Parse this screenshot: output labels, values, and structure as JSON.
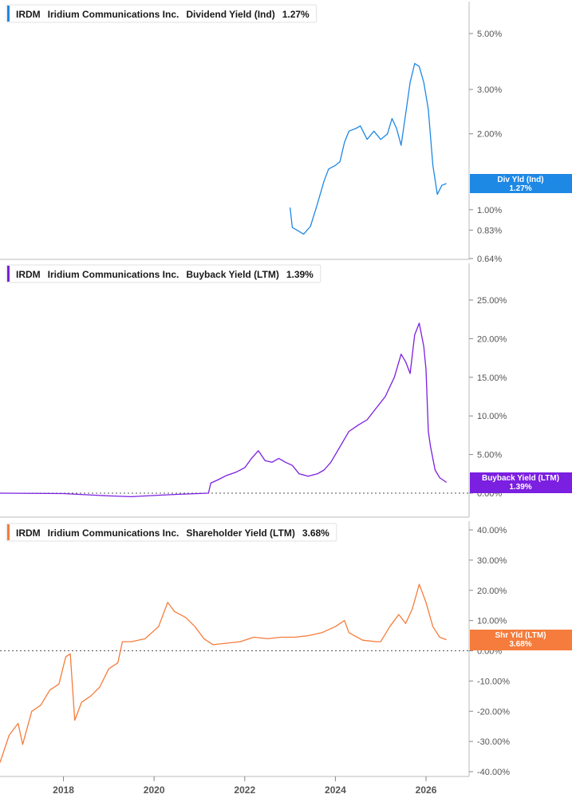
{
  "colors": {
    "dividend": "#1e88e5",
    "buyback": "#7b1fe0",
    "shareholder": "#f57c3c",
    "axis": "#bbbbbb",
    "text": "#1a1a1a",
    "muted": "#555555"
  },
  "x_axis": {
    "ticks": [
      "2018",
      "2020",
      "2022",
      "2024",
      "2026"
    ]
  },
  "chart_data": [
    {
      "type": "line",
      "ticker": "IRDM",
      "company": "Iridium Communications Inc.",
      "metric": "Dividend Yield (Ind)",
      "last_value": "1.27%",
      "tag": {
        "line1": "Div Yld (Ind)",
        "line2": "1.27%"
      },
      "y_scale": "log",
      "ylim": [
        0.64,
        6.5
      ],
      "y_ticks": [
        "5.00%",
        "3.00%",
        "2.00%",
        "1.00%",
        "0.83%",
        "0.64%"
      ],
      "y_tick_values": [
        5.0,
        3.0,
        2.0,
        1.0,
        0.83,
        0.64
      ],
      "series": [
        {
          "values": [
            [
              2023.0,
              1.02
            ],
            [
              2023.05,
              0.85
            ],
            [
              2023.15,
              0.83
            ],
            [
              2023.3,
              0.8
            ],
            [
              2023.45,
              0.86
            ],
            [
              2023.6,
              1.05
            ],
            [
              2023.75,
              1.3
            ],
            [
              2023.85,
              1.45
            ],
            [
              2024.0,
              1.5
            ],
            [
              2024.1,
              1.55
            ],
            [
              2024.2,
              1.85
            ],
            [
              2024.3,
              2.05
            ],
            [
              2024.45,
              2.1
            ],
            [
              2024.55,
              2.15
            ],
            [
              2024.7,
              1.9
            ],
            [
              2024.85,
              2.05
            ],
            [
              2025.0,
              1.9
            ],
            [
              2025.15,
              2.0
            ],
            [
              2025.25,
              2.3
            ],
            [
              2025.35,
              2.1
            ],
            [
              2025.45,
              1.8
            ],
            [
              2025.55,
              2.4
            ],
            [
              2025.65,
              3.2
            ],
            [
              2025.75,
              3.8
            ],
            [
              2025.85,
              3.7
            ],
            [
              2025.95,
              3.2
            ],
            [
              2026.05,
              2.5
            ],
            [
              2026.15,
              1.5
            ],
            [
              2026.25,
              1.15
            ],
            [
              2026.35,
              1.25
            ],
            [
              2026.45,
              1.27
            ]
          ]
        }
      ]
    },
    {
      "type": "line",
      "ticker": "IRDM",
      "company": "Iridium Communications Inc.",
      "metric": "Buyback Yield (LTM)",
      "last_value": "1.39%",
      "tag": {
        "line1": "Buyback Yield (LTM)",
        "line2": "1.39%"
      },
      "y_scale": "linear",
      "ylim": [
        -1,
        26
      ],
      "y_ticks": [
        "25.00%",
        "20.00%",
        "15.00%",
        "10.00%",
        "5.00%",
        "0.00%"
      ],
      "y_tick_values": [
        25,
        20,
        15,
        10,
        5,
        0
      ],
      "baseline": 0,
      "series": [
        {
          "values": [
            [
              2016.6,
              0.0
            ],
            [
              2018.0,
              -0.05
            ],
            [
              2019.0,
              -0.35
            ],
            [
              2019.5,
              -0.45
            ],
            [
              2020.0,
              -0.3
            ],
            [
              2020.5,
              -0.15
            ],
            [
              2021.2,
              0.0
            ],
            [
              2021.25,
              1.3
            ],
            [
              2021.4,
              1.7
            ],
            [
              2021.6,
              2.3
            ],
            [
              2021.8,
              2.7
            ],
            [
              2022.0,
              3.3
            ],
            [
              2022.15,
              4.5
            ],
            [
              2022.3,
              5.5
            ],
            [
              2022.45,
              4.2
            ],
            [
              2022.6,
              4.0
            ],
            [
              2022.75,
              4.5
            ],
            [
              2022.9,
              4.0
            ],
            [
              2023.05,
              3.6
            ],
            [
              2023.2,
              2.5
            ],
            [
              2023.4,
              2.2
            ],
            [
              2023.6,
              2.5
            ],
            [
              2023.75,
              3.0
            ],
            [
              2023.9,
              4.0
            ],
            [
              2024.1,
              6.0
            ],
            [
              2024.3,
              8.0
            ],
            [
              2024.5,
              8.8
            ],
            [
              2024.7,
              9.5
            ],
            [
              2024.9,
              11.0
            ],
            [
              2025.1,
              12.5
            ],
            [
              2025.3,
              15.0
            ],
            [
              2025.45,
              18.0
            ],
            [
              2025.55,
              17.0
            ],
            [
              2025.65,
              15.5
            ],
            [
              2025.75,
              20.5
            ],
            [
              2025.85,
              22.0
            ],
            [
              2025.95,
              19.0
            ],
            [
              2026.0,
              16.0
            ],
            [
              2026.05,
              8.0
            ],
            [
              2026.1,
              6.0
            ],
            [
              2026.2,
              3.0
            ],
            [
              2026.3,
              2.0
            ],
            [
              2026.4,
              1.6
            ],
            [
              2026.45,
              1.39
            ]
          ]
        }
      ]
    },
    {
      "type": "line",
      "ticker": "IRDM",
      "company": "Iridium Communications Inc.",
      "metric": "Shareholder Yield (LTM)",
      "last_value": "3.68%",
      "tag": {
        "line1": "Shr Yld (LTM)",
        "line2": "3.68%"
      },
      "y_scale": "linear",
      "ylim": [
        -41,
        45
      ],
      "y_ticks": [
        "40.00%",
        "30.00%",
        "20.00%",
        "10.00%",
        "0.00%",
        "-10.00%",
        "-20.00%",
        "-30.00%",
        "-40.00%"
      ],
      "y_tick_values": [
        40,
        30,
        20,
        10,
        0,
        -10,
        -20,
        -30,
        -40
      ],
      "baseline": 0,
      "series": [
        {
          "values": [
            [
              2016.6,
              -37
            ],
            [
              2016.8,
              -28
            ],
            [
              2017.0,
              -24
            ],
            [
              2017.1,
              -31
            ],
            [
              2017.3,
              -20
            ],
            [
              2017.5,
              -18
            ],
            [
              2017.7,
              -13
            ],
            [
              2017.9,
              -11
            ],
            [
              2018.05,
              -2
            ],
            [
              2018.15,
              -1
            ],
            [
              2018.25,
              -23
            ],
            [
              2018.4,
              -17
            ],
            [
              2018.6,
              -15
            ],
            [
              2018.8,
              -12
            ],
            [
              2019.0,
              -6
            ],
            [
              2019.2,
              -4
            ],
            [
              2019.3,
              3
            ],
            [
              2019.5,
              3
            ],
            [
              2019.8,
              4
            ],
            [
              2020.1,
              8
            ],
            [
              2020.3,
              16
            ],
            [
              2020.45,
              13
            ],
            [
              2020.7,
              11
            ],
            [
              2020.9,
              8
            ],
            [
              2021.1,
              4
            ],
            [
              2021.3,
              2
            ],
            [
              2021.6,
              2.5
            ],
            [
              2021.9,
              3
            ],
            [
              2022.2,
              4.5
            ],
            [
              2022.5,
              4
            ],
            [
              2022.8,
              4.5
            ],
            [
              2023.1,
              4.5
            ],
            [
              2023.4,
              5
            ],
            [
              2023.7,
              6
            ],
            [
              2024.0,
              8
            ],
            [
              2024.2,
              10
            ],
            [
              2024.3,
              6
            ],
            [
              2024.6,
              3.5
            ],
            [
              2024.9,
              3
            ],
            [
              2025.0,
              3
            ],
            [
              2025.2,
              8
            ],
            [
              2025.4,
              12
            ],
            [
              2025.55,
              9
            ],
            [
              2025.7,
              14
            ],
            [
              2025.85,
              22
            ],
            [
              2026.0,
              16
            ],
            [
              2026.15,
              8
            ],
            [
              2026.3,
              4.5
            ],
            [
              2026.45,
              3.68
            ]
          ]
        }
      ]
    }
  ]
}
